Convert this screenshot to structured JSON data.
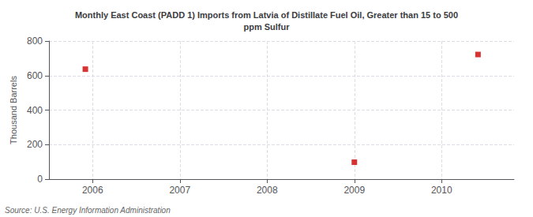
{
  "chart_data": {
    "type": "scatter",
    "title": "Monthly East Coast (PADD 1) Imports from Latvia of Distillate Fuel Oil, Greater than 15 to 500\nppm Sulfur",
    "ylabel": "Thousand Barrels",
    "annotations": [
      "Source: U.S. Energy Information Administration"
    ],
    "x": [
      2005.917,
      2009.0,
      2010.417
    ],
    "values": [
      637,
      98,
      722
    ],
    "color": "#cc0000",
    "marker": "square",
    "xlim": [
      2005.5,
      2010.83
    ],
    "ylim": [
      0,
      800
    ],
    "xticks": [
      2006,
      2007,
      2008,
      2009,
      2010
    ],
    "yticks": [
      0,
      200,
      400,
      600,
      800
    ],
    "grid": true
  }
}
